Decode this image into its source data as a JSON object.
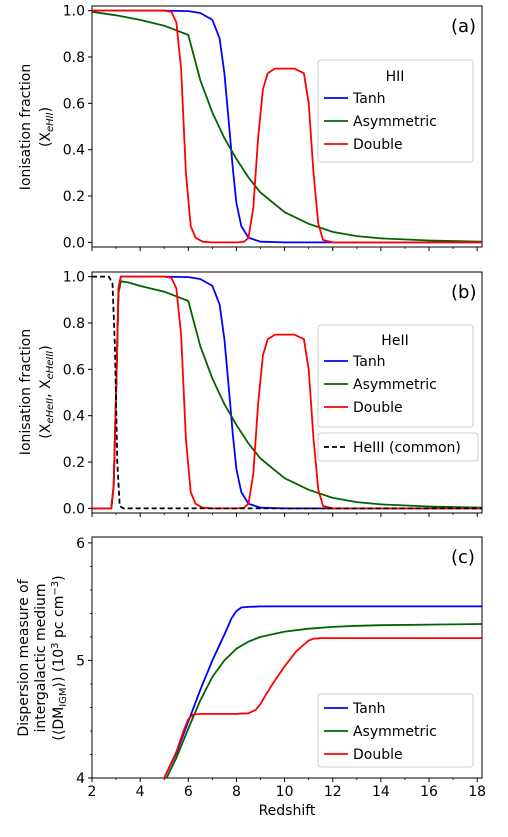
{
  "colors": {
    "tanh": "#0000ff",
    "asymmetric": "#006400",
    "double": "#ff0000",
    "heiii": "#000000"
  },
  "x_axis": {
    "label": "Redshift",
    "ticks": [
      "2",
      "4",
      "6",
      "8",
      "10",
      "12",
      "14",
      "16",
      "18"
    ]
  },
  "chart_data": [
    {
      "type": "line",
      "panel_label": "(a)",
      "ylabel_line1": "Ionisation fraction",
      "ylabel_line2": "(X",
      "ylabel_sub": "eHII",
      "ylabel_end": ")",
      "xlim": [
        2,
        18.2
      ],
      "ylim": [
        -0.02,
        1.02
      ],
      "yticks": [
        "0.0",
        "0.2",
        "0.4",
        "0.6",
        "0.8",
        "1.0"
      ],
      "legend": {
        "title": "HII",
        "position": "right",
        "entries": [
          "Tanh",
          "Asymmetric",
          "Double"
        ]
      },
      "series": [
        {
          "name": "Tanh",
          "color_key": "tanh",
          "x": [
            2,
            3,
            4,
            5,
            6,
            6.5,
            7,
            7.3,
            7.5,
            7.7,
            7.85,
            8,
            8.2,
            8.5,
            9,
            10,
            12,
            14,
            18.2
          ],
          "y": [
            1,
            1,
            1,
            1,
            0.998,
            0.99,
            0.96,
            0.88,
            0.73,
            0.5,
            0.32,
            0.17,
            0.07,
            0.02,
            0.003,
            0,
            0,
            0,
            0
          ]
        },
        {
          "name": "Asymmetric",
          "color_key": "asymmetric",
          "x": [
            2,
            3,
            4,
            5,
            5.5,
            6,
            6.5,
            7,
            7.5,
            8,
            8.5,
            9,
            10,
            11,
            12,
            13,
            14,
            16,
            18.2
          ],
          "y": [
            0.995,
            0.98,
            0.96,
            0.935,
            0.915,
            0.895,
            0.7,
            0.56,
            0.45,
            0.36,
            0.28,
            0.215,
            0.13,
            0.08,
            0.045,
            0.027,
            0.017,
            0.008,
            0.003
          ]
        },
        {
          "name": "Double",
          "color_key": "double",
          "x": [
            2,
            3,
            4,
            5,
            5.3,
            5.5,
            5.7,
            5.9,
            6.1,
            6.3,
            6.6,
            7,
            8,
            8.3,
            8.5,
            8.7,
            8.9,
            9.1,
            9.3,
            9.6,
            10,
            10.4,
            10.8,
            11,
            11.2,
            11.4,
            11.6,
            12,
            14,
            18.2
          ],
          "y": [
            1,
            1,
            1,
            1,
            0.995,
            0.95,
            0.75,
            0.3,
            0.07,
            0.02,
            0.003,
            0,
            0,
            0.002,
            0.02,
            0.15,
            0.45,
            0.66,
            0.73,
            0.75,
            0.75,
            0.75,
            0.73,
            0.6,
            0.3,
            0.08,
            0.01,
            0,
            0,
            0
          ]
        }
      ]
    },
    {
      "type": "line",
      "panel_label": "(b)",
      "ylabel_line1": "Ionisation fraction",
      "ylabel_line2": "(X",
      "ylabel_sub": "eHeII",
      "ylabel_mid": ", X",
      "ylabel_sub2": "eHeIII",
      "ylabel_end": ")",
      "xlim": [
        2,
        18.2
      ],
      "ylim": [
        -0.02,
        1.02
      ],
      "yticks": [
        "0.0",
        "0.2",
        "0.4",
        "0.6",
        "0.8",
        "1.0"
      ],
      "legend": {
        "title": "HeII",
        "position": "right",
        "entries": [
          "Tanh",
          "Asymmetric",
          "Double"
        ]
      },
      "legend2": {
        "position": "right",
        "entries": [
          "HeIII (common)"
        ]
      },
      "series": [
        {
          "name": "Tanh",
          "color_key": "tanh",
          "x": [
            2,
            2.8,
            2.9,
            3.0,
            3.1,
            3.2,
            3.5,
            4,
            5,
            6,
            6.5,
            7,
            7.3,
            7.5,
            7.7,
            7.85,
            8,
            8.2,
            8.5,
            9,
            10,
            18.2
          ],
          "y": [
            0,
            0,
            0.1,
            0.5,
            0.95,
            1,
            1,
            1,
            1,
            0.998,
            0.99,
            0.96,
            0.88,
            0.73,
            0.5,
            0.32,
            0.17,
            0.07,
            0.02,
            0.003,
            0,
            0
          ]
        },
        {
          "name": "Asymmetric",
          "color_key": "asymmetric",
          "x": [
            2,
            2.8,
            2.9,
            3.0,
            3.1,
            3.2,
            3.5,
            4,
            5,
            5.5,
            6,
            6.5,
            7,
            7.5,
            8,
            8.5,
            9,
            10,
            11,
            12,
            13,
            14,
            16,
            18.2
          ],
          "y": [
            0,
            0,
            0.1,
            0.5,
            0.93,
            0.98,
            0.975,
            0.96,
            0.935,
            0.915,
            0.895,
            0.7,
            0.56,
            0.45,
            0.36,
            0.28,
            0.215,
            0.13,
            0.08,
            0.045,
            0.027,
            0.017,
            0.008,
            0.003
          ]
        },
        {
          "name": "Double",
          "color_key": "double",
          "x": [
            2,
            2.8,
            2.9,
            3.0,
            3.1,
            3.2,
            3.5,
            4,
            5,
            5.3,
            5.5,
            5.7,
            5.9,
            6.1,
            6.3,
            6.6,
            7,
            8,
            8.3,
            8.5,
            8.7,
            8.9,
            9.1,
            9.3,
            9.6,
            10,
            10.4,
            10.8,
            11,
            11.2,
            11.4,
            11.6,
            12,
            18.2
          ],
          "y": [
            0,
            0,
            0.1,
            0.5,
            0.95,
            1,
            1,
            1,
            1,
            0.995,
            0.95,
            0.75,
            0.3,
            0.07,
            0.02,
            0.003,
            0,
            0,
            0.002,
            0.02,
            0.15,
            0.45,
            0.66,
            0.73,
            0.75,
            0.75,
            0.75,
            0.73,
            0.6,
            0.3,
            0.08,
            0.01,
            0,
            0
          ]
        },
        {
          "name": "HeIII (common)",
          "color_key": "heiii",
          "dashed": true,
          "x": [
            2,
            2.7,
            2.85,
            2.95,
            3.05,
            3.15,
            3.3,
            18.2
          ],
          "y": [
            1,
            1,
            0.97,
            0.7,
            0.2,
            0.01,
            0,
            0
          ]
        }
      ]
    },
    {
      "type": "line",
      "panel_label": "(c)",
      "ylabel_line1": "Dispersion measure of",
      "ylabel_line2": "intergalactic medium",
      "ylabel_line3a": "(⟨DM",
      "ylabel_line3sub": "IGM",
      "ylabel_line3b": "⟩) (10",
      "ylabel_line3sup": "3",
      "ylabel_line3c": " pc cm",
      "ylabel_line3sup2": "−3",
      "ylabel_line3d": ")",
      "xlim": [
        2,
        18.2
      ],
      "ylim": [
        4,
        6.05
      ],
      "yticks": [
        "4",
        "5",
        "6"
      ],
      "legend": {
        "position": "bottom-right",
        "entries": [
          "Tanh",
          "Asymmetric",
          "Double"
        ]
      },
      "series": [
        {
          "name": "Tanh",
          "color_key": "tanh",
          "x": [
            5,
            5.5,
            6,
            6.5,
            7,
            7.5,
            7.8,
            8,
            8.2,
            8.5,
            9,
            10,
            12,
            14,
            16,
            18.2
          ],
          "y": [
            4,
            4.21,
            4.48,
            4.75,
            5.0,
            5.22,
            5.36,
            5.42,
            5.45,
            5.455,
            5.46,
            5.46,
            5.46,
            5.46,
            5.46,
            5.46
          ]
        },
        {
          "name": "Asymmetric",
          "color_key": "asymmetric",
          "x": [
            5.1,
            5.5,
            6,
            6.5,
            7,
            7.5,
            8,
            8.5,
            9,
            10,
            11,
            12,
            13,
            14,
            16,
            18.2
          ],
          "y": [
            4,
            4.17,
            4.42,
            4.66,
            4.86,
            5.0,
            5.1,
            5.16,
            5.2,
            5.245,
            5.27,
            5.285,
            5.295,
            5.3,
            5.305,
            5.31
          ]
        },
        {
          "name": "Double",
          "color_key": "double",
          "x": [
            5,
            5.5,
            5.8,
            6,
            6.2,
            6.5,
            7,
            8,
            8.5,
            8.8,
            9,
            9.2,
            9.5,
            10,
            10.5,
            11,
            11.2,
            11.5,
            12,
            14,
            18.2
          ],
          "y": [
            4,
            4.22,
            4.4,
            4.5,
            4.54,
            4.545,
            4.545,
            4.545,
            4.55,
            4.58,
            4.63,
            4.7,
            4.8,
            4.95,
            5.08,
            5.17,
            5.185,
            5.19,
            5.19,
            5.19,
            5.19
          ]
        }
      ]
    }
  ]
}
